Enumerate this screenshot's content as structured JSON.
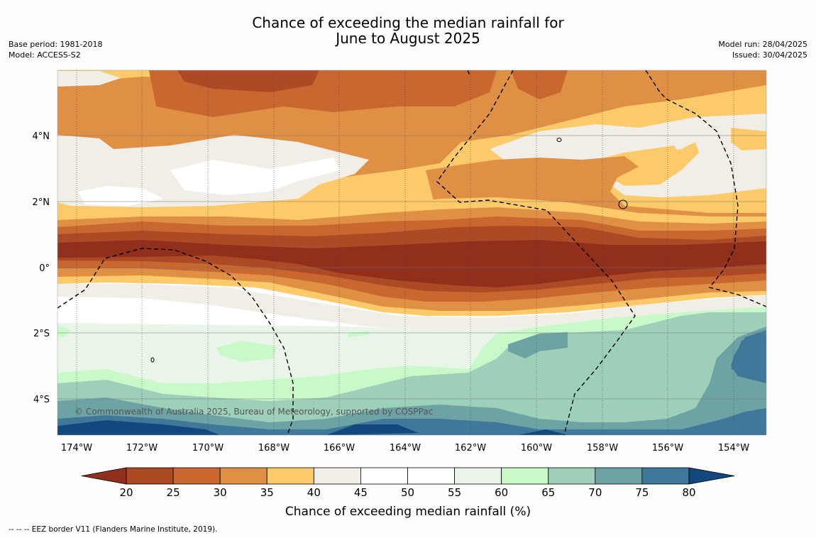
{
  "title_line1": "Chance of exceeding the median rainfall for",
  "title_line2": "June to August 2025",
  "base_period": "Base period: 1981-2018",
  "model": "Model: ACCESS-S2",
  "model_run": "Model run: 28/04/2025",
  "issued": "Issued: 30/04/2025",
  "copyright": "© Commonwealth of Australia 2025, Bureau of Meteorology, supported by COSPPac",
  "footnote": "--  --  -- EEZ border V11 (Flanders Marine Institute, 2019).",
  "lat_labels": [
    "4°N",
    "2°N",
    "0°",
    "2°S",
    "4°S"
  ],
  "lon_labels": [
    "174°W",
    "172°W",
    "170°W",
    "168°W",
    "166°W",
    "164°W",
    "162°W",
    "160°W",
    "158°W",
    "156°W",
    "154°W"
  ],
  "colorbar": {
    "title": "Chance of exceeding median rainfall (%)",
    "ticks": [
      "20",
      "25",
      "30",
      "35",
      "40",
      "45",
      "50",
      "55",
      "60",
      "65",
      "70",
      "75",
      "80"
    ],
    "below_color": "#8f2f1c",
    "above_color": "#13487f",
    "colors": [
      "#ad4a26",
      "#c8672f",
      "#e09044",
      "#fdca6a",
      "#f1ede7",
      "#ffffff",
      "#ffffff",
      "#eaf5ea",
      "#c9f8c9",
      "#9ecfb9",
      "#6ea3a6",
      "#3f7898"
    ]
  },
  "colors": {
    "c20": "#8f2f1c",
    "c25": "#ad4a26",
    "c30": "#c8672f",
    "c35": "#e09044",
    "c40": "#fdca6a",
    "c45": "#f1ede7",
    "c50": "#ffffff",
    "c60": "#eaf5ea",
    "c65": "#c9f8c9",
    "c70": "#9ecfb9",
    "c75": "#6ea3a6",
    "c80": "#3f7898",
    "c85": "#13487f"
  }
}
